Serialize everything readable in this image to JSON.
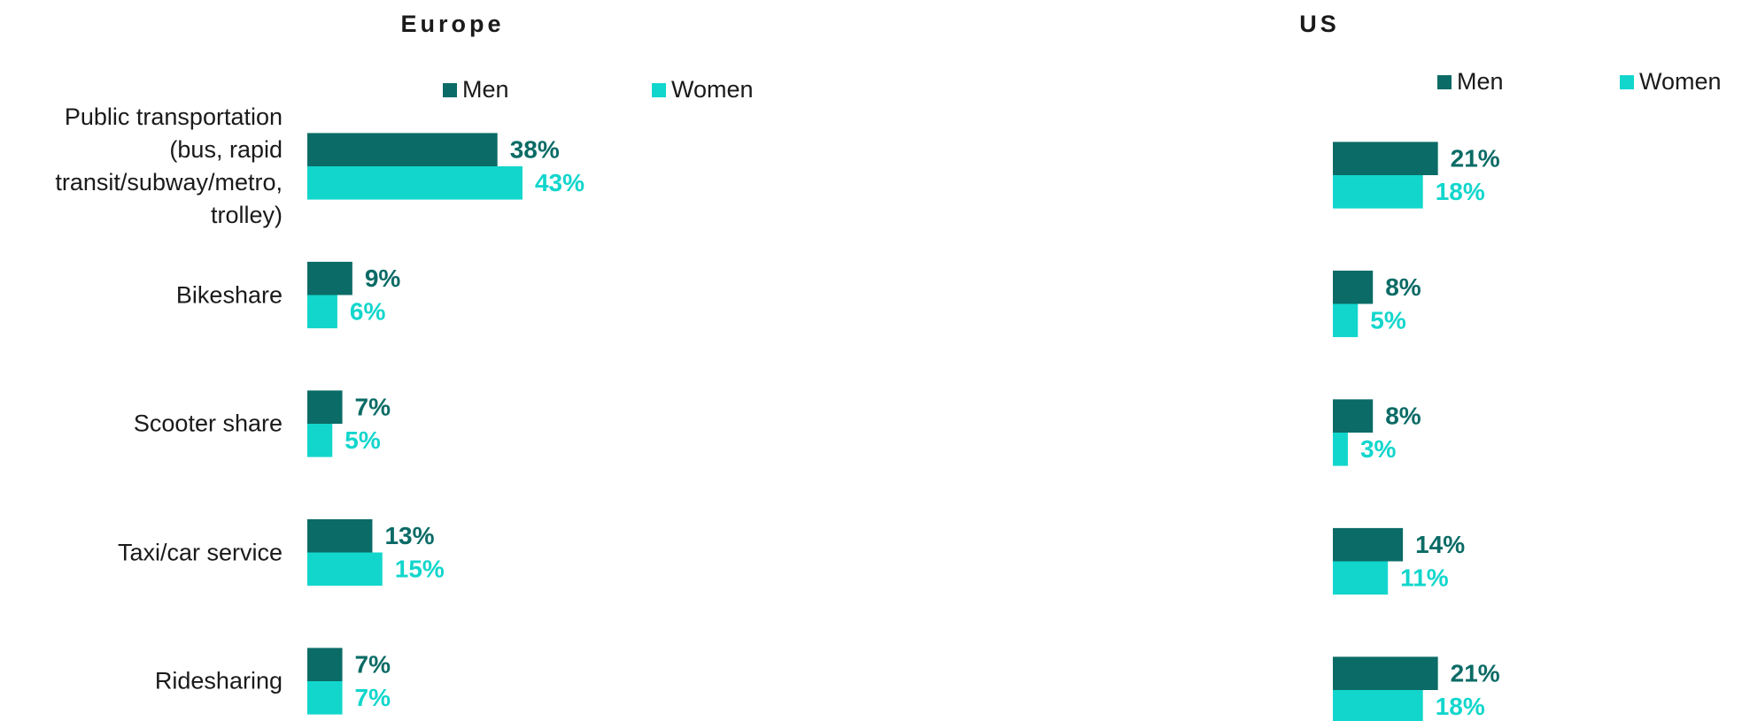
{
  "chart_data": [
    {
      "type": "bar",
      "orientation": "horizontal",
      "title": "Europe",
      "categories": [
        "Public transportation (bus, rapid transit/subway/metro, trolley)",
        "Bikeshare",
        "Scooter share",
        "Taxi/car service",
        "Ridesharing"
      ],
      "series": [
        {
          "name": "Men",
          "color": "#0b6b66",
          "values": [
            38,
            9,
            7,
            13,
            7
          ],
          "value_labels": [
            "38%",
            "9%",
            "7%",
            "13%",
            "7%"
          ]
        },
        {
          "name": "Women",
          "color": "#12d6cc",
          "values": [
            43,
            6,
            5,
            15,
            7
          ],
          "value_labels": [
            "43%",
            "6%",
            "5%",
            "15%",
            "7%"
          ]
        }
      ]
    },
    {
      "type": "bar",
      "orientation": "horizontal",
      "title": "US",
      "categories": [
        null,
        null,
        null,
        null,
        null
      ],
      "series": [
        {
          "name": "Men",
          "color": "#0b6b66",
          "values": [
            21,
            8,
            8,
            14,
            21
          ],
          "value_labels": [
            "21%",
            "8%",
            "8%",
            "14%",
            "21%"
          ]
        },
        {
          "name": "Women",
          "color": "#12d6cc",
          "values": [
            18,
            5,
            3,
            11,
            18
          ],
          "value_labels": [
            "18%",
            "5%",
            "3%",
            "11%",
            "18%"
          ]
        }
      ]
    }
  ]
}
